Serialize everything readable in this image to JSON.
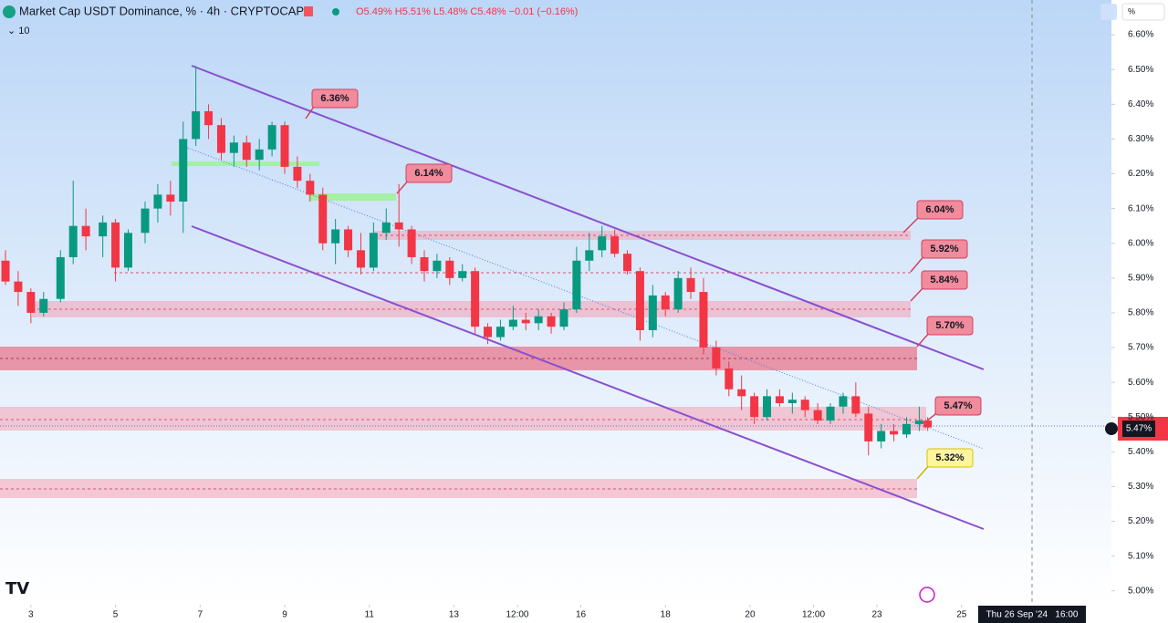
{
  "chart_data": {
    "type": "candlestick",
    "title": "Market Cap USDT Dominance, % · 4h · CRYPTOCAP",
    "ohlc_text": "O5.49% H5.51% L5.48% C5.48% −0.01 (−0.16%)",
    "indicator": "10",
    "scale_button": "%",
    "price_label": "5.47%",
    "crosshair_label": "Thu 26 Sep '24   16:00",
    "up_color": "#089981",
    "down_color": "#f23645",
    "xlim": [
      2.27,
      28.37
    ],
    "ylim": [
      4.96,
      6.7
    ],
    "xticks": [
      3,
      5,
      7,
      9,
      11,
      13,
      {
        "value": 14.5,
        "label": "12:00"
      },
      16,
      18,
      20,
      {
        "value": 21.5,
        "label": "12:00"
      },
      23,
      25
    ],
    "yticks": [
      {
        "value": 6.6,
        "label": "6.60%"
      },
      {
        "value": 6.5,
        "label": "6.50%"
      },
      {
        "value": 6.4,
        "label": "6.40%"
      },
      {
        "value": 6.3,
        "label": "6.30%"
      },
      {
        "value": 6.2,
        "label": "6.20%"
      },
      {
        "value": 6.1,
        "label": "6.10%"
      },
      {
        "value": 6.0,
        "label": "6.00%"
      },
      {
        "value": 5.9,
        "label": "5.90%"
      },
      {
        "value": 5.8,
        "label": "5.80%"
      },
      {
        "value": 5.7,
        "label": "5.70%"
      },
      {
        "value": 5.6,
        "label": "5.60%"
      },
      {
        "value": 5.5,
        "label": "5.50%"
      },
      {
        "value": 5.4,
        "label": "5.40%"
      },
      {
        "value": 5.3,
        "label": "5.30%"
      },
      {
        "value": 5.2,
        "label": "5.20%"
      },
      {
        "value": 5.1,
        "label": "5.10%"
      },
      {
        "value": 5.0,
        "label": "5.00%"
      }
    ],
    "annotations": [
      "6.36%",
      "6.14%",
      "6.04%",
      "5.92%",
      "5.84%",
      "5.70%",
      "5.47%",
      "5.32%"
    ],
    "x": [
      2.4,
      2.7,
      3.0,
      3.3,
      3.7,
      4.0,
      4.3,
      4.7,
      5.0,
      5.3,
      5.7,
      6.0,
      6.3,
      6.6,
      6.9,
      7.2,
      7.5,
      7.8,
      8.1,
      8.4,
      8.7,
      9.0,
      9.3,
      9.6,
      9.9,
      10.2,
      10.5,
      10.8,
      11.1,
      11.4,
      11.7,
      12.0,
      12.3,
      12.6,
      12.9,
      13.2,
      13.5,
      13.8,
      14.1,
      14.4,
      14.7,
      15.0,
      15.3,
      15.6,
      15.9,
      16.2,
      16.5,
      16.8,
      17.1,
      17.4,
      17.7,
      18.0,
      18.3,
      18.6,
      18.9,
      19.2,
      19.5,
      19.8,
      20.1,
      20.4,
      20.7,
      21.0,
      21.3,
      21.6,
      21.9,
      22.2,
      22.5,
      22.8,
      23.1,
      23.4,
      23.7,
      24.0,
      24.2
    ],
    "candles": [
      [
        5.95,
        5.98,
        5.88,
        5.89
      ],
      [
        5.89,
        5.92,
        5.82,
        5.86
      ],
      [
        5.86,
        5.87,
        5.77,
        5.8
      ],
      [
        5.8,
        5.86,
        5.79,
        5.84
      ],
      [
        5.84,
        5.98,
        5.83,
        5.96
      ],
      [
        5.96,
        6.18,
        5.94,
        6.05
      ],
      [
        6.05,
        6.1,
        5.98,
        6.02
      ],
      [
        6.02,
        6.08,
        5.96,
        6.06
      ],
      [
        6.06,
        6.07,
        5.89,
        5.93
      ],
      [
        5.93,
        6.04,
        5.92,
        6.03
      ],
      [
        6.03,
        6.12,
        6.0,
        6.1
      ],
      [
        6.1,
        6.17,
        6.06,
        6.14
      ],
      [
        6.14,
        6.18,
        6.08,
        6.12
      ],
      [
        6.12,
        6.35,
        6.03,
        6.3
      ],
      [
        6.3,
        6.51,
        6.28,
        6.38
      ],
      [
        6.38,
        6.4,
        6.3,
        6.34
      ],
      [
        6.34,
        6.36,
        6.24,
        6.26
      ],
      [
        6.26,
        6.31,
        6.22,
        6.29
      ],
      [
        6.29,
        6.31,
        6.22,
        6.24
      ],
      [
        6.24,
        6.3,
        6.21,
        6.27
      ],
      [
        6.27,
        6.35,
        6.25,
        6.34
      ],
      [
        6.34,
        6.35,
        6.2,
        6.22
      ],
      [
        6.22,
        6.25,
        6.16,
        6.18
      ],
      [
        6.18,
        6.2,
        6.12,
        6.14
      ],
      [
        6.14,
        6.16,
        5.98,
        6.0
      ],
      [
        6.0,
        6.07,
        5.94,
        6.04
      ],
      [
        6.04,
        6.05,
        5.96,
        5.98
      ],
      [
        5.98,
        6.03,
        5.91,
        5.93
      ],
      [
        5.93,
        6.06,
        5.92,
        6.03
      ],
      [
        6.03,
        6.1,
        6.01,
        6.06
      ],
      [
        6.06,
        6.17,
        5.99,
        6.04
      ],
      [
        6.04,
        6.05,
        5.94,
        5.96
      ],
      [
        5.96,
        5.98,
        5.89,
        5.92
      ],
      [
        5.92,
        5.97,
        5.9,
        5.95
      ],
      [
        5.95,
        5.96,
        5.88,
        5.9
      ],
      [
        5.9,
        5.94,
        5.89,
        5.92
      ],
      [
        5.92,
        5.93,
        5.74,
        5.76
      ],
      [
        5.76,
        5.77,
        5.71,
        5.73
      ],
      [
        5.73,
        5.78,
        5.72,
        5.76
      ],
      [
        5.76,
        5.82,
        5.75,
        5.78
      ],
      [
        5.78,
        5.8,
        5.75,
        5.77
      ],
      [
        5.77,
        5.81,
        5.75,
        5.79
      ],
      [
        5.79,
        5.8,
        5.74,
        5.76
      ],
      [
        5.76,
        5.83,
        5.75,
        5.81
      ],
      [
        5.81,
        5.99,
        5.8,
        5.95
      ],
      [
        5.95,
        6.03,
        5.92,
        5.98
      ],
      [
        5.98,
        6.05,
        5.96,
        6.02
      ],
      [
        6.02,
        6.04,
        5.96,
        5.97
      ],
      [
        5.97,
        5.98,
        5.91,
        5.92
      ],
      [
        5.92,
        5.93,
        5.72,
        5.75
      ],
      [
        5.75,
        5.88,
        5.73,
        5.85
      ],
      [
        5.85,
        5.86,
        5.79,
        5.81
      ],
      [
        5.81,
        5.92,
        5.8,
        5.9
      ],
      [
        5.9,
        5.93,
        5.84,
        5.86
      ],
      [
        5.86,
        5.9,
        5.68,
        5.7
      ],
      [
        5.7,
        5.72,
        5.62,
        5.64
      ],
      [
        5.64,
        5.66,
        5.56,
        5.58
      ],
      [
        5.58,
        5.62,
        5.52,
        5.56
      ],
      [
        5.56,
        5.57,
        5.48,
        5.5
      ],
      [
        5.5,
        5.58,
        5.49,
        5.56
      ],
      [
        5.56,
        5.58,
        5.53,
        5.54
      ],
      [
        5.54,
        5.57,
        5.51,
        5.55
      ],
      [
        5.55,
        5.56,
        5.5,
        5.52
      ],
      [
        5.52,
        5.54,
        5.48,
        5.49
      ],
      [
        5.49,
        5.54,
        5.48,
        5.53
      ],
      [
        5.53,
        5.57,
        5.51,
        5.56
      ],
      [
        5.56,
        5.6,
        5.5,
        5.51
      ],
      [
        5.51,
        5.53,
        5.39,
        5.43
      ],
      [
        5.43,
        5.48,
        5.41,
        5.46
      ],
      [
        5.46,
        5.48,
        5.43,
        5.45
      ],
      [
        5.45,
        5.5,
        5.44,
        5.48
      ],
      [
        5.48,
        5.53,
        5.46,
        5.49
      ],
      [
        5.49,
        5.5,
        5.46,
        5.47
      ]
    ]
  }
}
